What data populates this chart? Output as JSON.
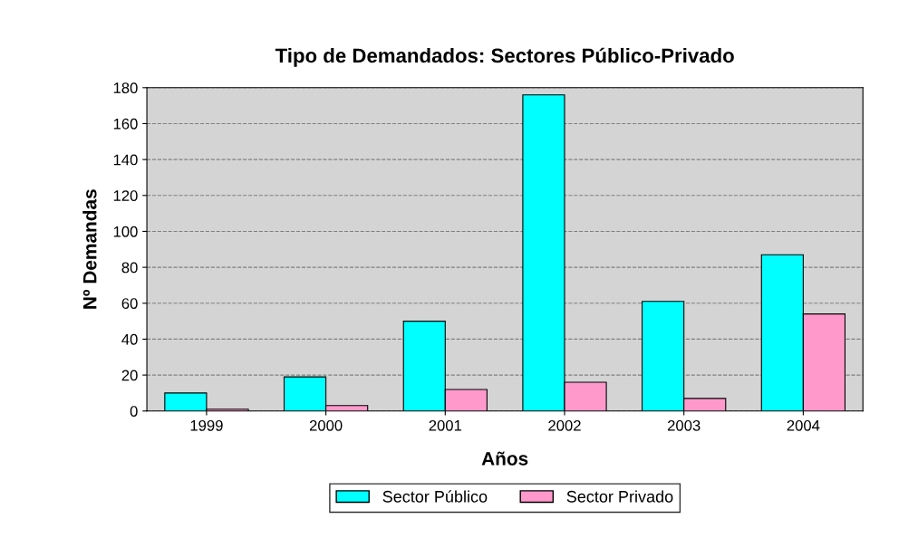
{
  "chart_data": {
    "type": "bar",
    "title": "Tipo de Demandados: Sectores Público-Privado",
    "xlabel": "Años",
    "ylabel": "Nº Demandas",
    "categories": [
      "1999",
      "2000",
      "2001",
      "2002",
      "2003",
      "2004"
    ],
    "series": [
      {
        "name": "Sector Público",
        "color": "#00ffff",
        "values": [
          10,
          19,
          50,
          176,
          61,
          87
        ]
      },
      {
        "name": "Sector Privado",
        "color": "#ff99cc",
        "values": [
          1,
          3,
          12,
          16,
          7,
          54
        ]
      }
    ],
    "ylim": [
      0,
      180
    ],
    "yticks": [
      0,
      20,
      40,
      60,
      80,
      100,
      120,
      140,
      160,
      180
    ],
    "grid": "y",
    "legend": "bottom"
  }
}
